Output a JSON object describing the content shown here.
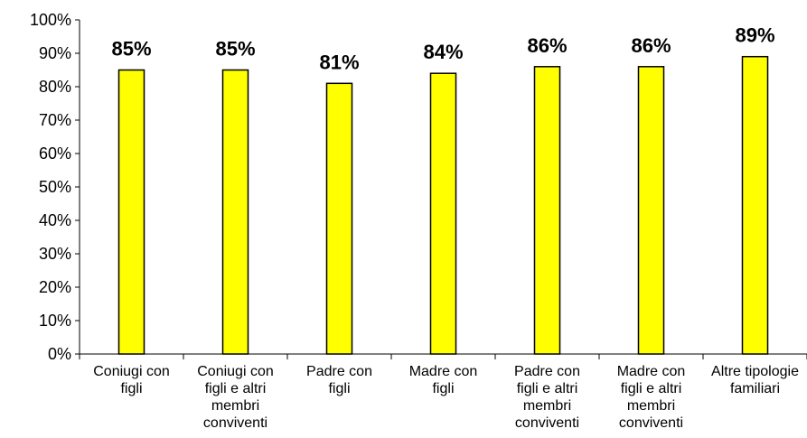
{
  "chart_data": {
    "type": "bar",
    "title": "",
    "xlabel": "",
    "ylabel": "",
    "categories": [
      [
        "Coniugi con",
        "figli"
      ],
      [
        "Coniugi con",
        "figli e altri",
        "membri",
        "conviventi"
      ],
      [
        "Padre con",
        "figli"
      ],
      [
        "Madre con",
        "figli"
      ],
      [
        "Padre con",
        "figli e altri",
        "membri",
        "conviventi"
      ],
      [
        "Madre con",
        "figli e altri",
        "membri",
        "conviventi"
      ],
      [
        "Altre tipologie",
        "familiari"
      ]
    ],
    "values": [
      0.85,
      0.85,
      0.81,
      0.84,
      0.86,
      0.86,
      0.89
    ],
    "data_labels": [
      "85%",
      "85%",
      "81%",
      "84%",
      "86%",
      "86%",
      "89%"
    ],
    "ylim": [
      0,
      1
    ],
    "yticks": [
      0,
      0.1,
      0.2,
      0.3,
      0.4,
      0.5,
      0.6,
      0.7,
      0.8,
      0.9,
      1.0
    ],
    "ytick_labels": [
      "0%",
      "10%",
      "20%",
      "30%",
      "40%",
      "50%",
      "60%",
      "70%",
      "80%",
      "90%",
      "100%"
    ],
    "grid": false,
    "legend": "none",
    "bar_color": "#FFFF00",
    "bar_edge_color": "#000000"
  }
}
